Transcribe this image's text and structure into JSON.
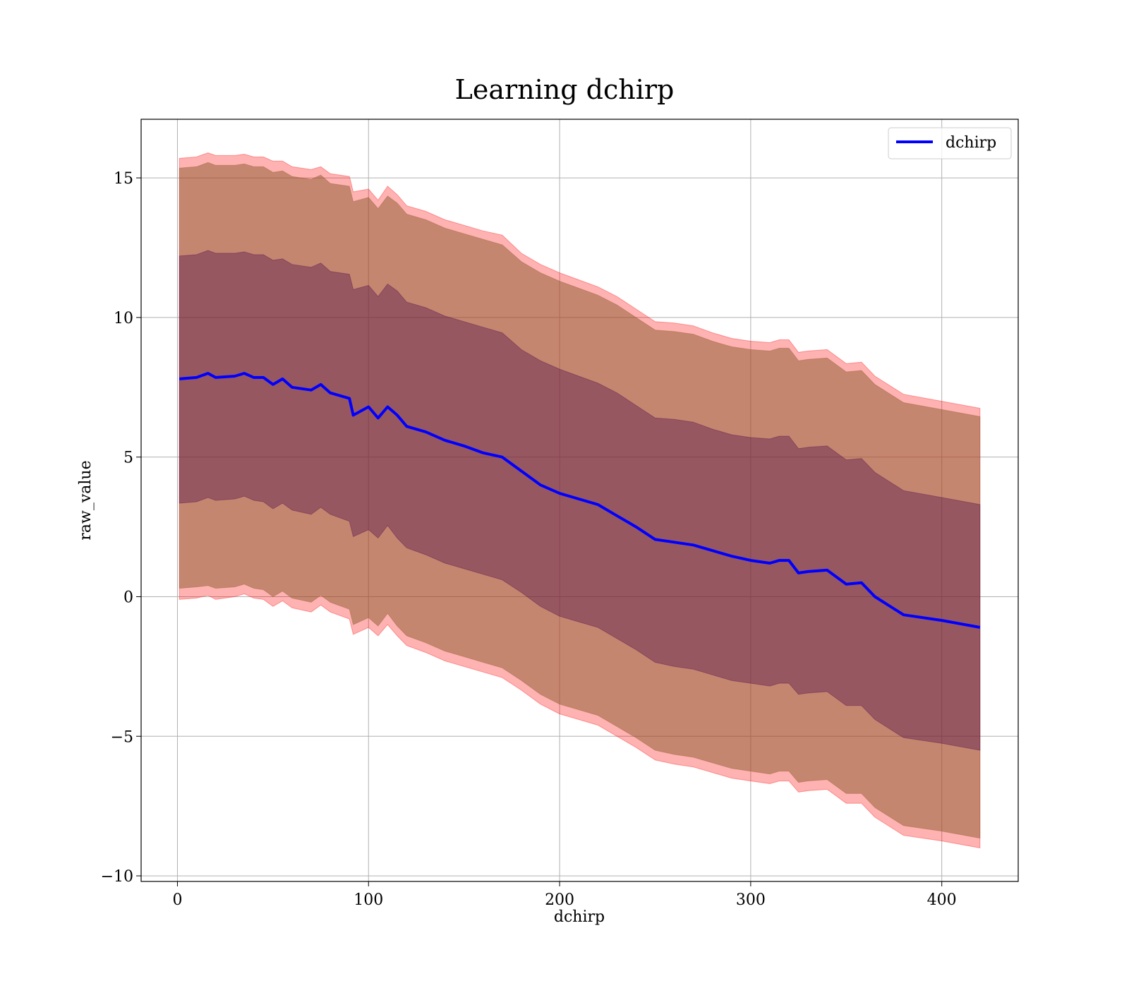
{
  "chart_data": {
    "type": "line",
    "title": "Learning dchirp",
    "xlabel": "dchirp",
    "ylabel": "raw_value",
    "xlim": [
      -19,
      440
    ],
    "ylim": [
      -10.2,
      17.1
    ],
    "xticks": [
      0,
      100,
      200,
      300,
      400
    ],
    "yticks": [
      -10,
      -5,
      0,
      5,
      10,
      15
    ],
    "xtick_labels": [
      "0",
      "100",
      "200",
      "300",
      "400"
    ],
    "ytick_labels": [
      "−10",
      "−5",
      "0",
      "5",
      "10",
      "15"
    ],
    "grid": true,
    "legend": {
      "position": "top-right",
      "entries": [
        "dchirp"
      ]
    },
    "colors": {
      "line": "#0000ff",
      "outer_band": "#ff0000",
      "middle_band": "#8b5a2b",
      "inner_band": "#4b0a4b"
    },
    "x": [
      1,
      10,
      16,
      20,
      30,
      35,
      40,
      45,
      50,
      55,
      60,
      70,
      75,
      80,
      90,
      92,
      100,
      105,
      110,
      115,
      120,
      130,
      140,
      150,
      160,
      170,
      180,
      190,
      200,
      210,
      220,
      230,
      240,
      250,
      260,
      270,
      280,
      290,
      300,
      310,
      315,
      320,
      325,
      330,
      340,
      350,
      358,
      365,
      380,
      400,
      420
    ],
    "series": [
      {
        "name": "dchirp",
        "values": [
          7.8,
          7.85,
          8.0,
          7.85,
          7.9,
          8.0,
          7.85,
          7.85,
          7.6,
          7.8,
          7.5,
          7.4,
          7.6,
          7.3,
          7.1,
          6.5,
          6.8,
          6.4,
          6.8,
          6.5,
          6.1,
          5.9,
          5.6,
          5.4,
          5.15,
          5.0,
          4.5,
          4.0,
          3.7,
          3.5,
          3.3,
          2.9,
          2.5,
          2.05,
          1.95,
          1.85,
          1.65,
          1.45,
          1.3,
          1.2,
          1.3,
          1.3,
          0.85,
          0.9,
          0.95,
          0.45,
          0.5,
          0.0,
          -0.65,
          -0.85,
          -1.1
        ]
      }
    ],
    "bands": [
      {
        "level": "outer",
        "upper": [
          15.7,
          15.75,
          15.9,
          15.8,
          15.8,
          15.85,
          15.75,
          15.75,
          15.6,
          15.6,
          15.4,
          15.3,
          15.4,
          15.15,
          15.05,
          14.5,
          14.6,
          14.2,
          14.7,
          14.4,
          14.0,
          13.8,
          13.5,
          13.3,
          13.1,
          12.95,
          12.3,
          11.9,
          11.6,
          11.35,
          11.1,
          10.75,
          10.3,
          9.85,
          9.8,
          9.7,
          9.45,
          9.25,
          9.15,
          9.1,
          9.2,
          9.2,
          8.75,
          8.8,
          8.85,
          8.35,
          8.4,
          7.9,
          7.25,
          7.0,
          6.75
        ],
        "lower": [
          -0.1,
          -0.05,
          0.05,
          -0.1,
          0.0,
          0.1,
          -0.05,
          -0.1,
          -0.35,
          -0.15,
          -0.4,
          -0.55,
          -0.3,
          -0.55,
          -0.8,
          -1.35,
          -1.1,
          -1.4,
          -1.0,
          -1.4,
          -1.75,
          -2.0,
          -2.3,
          -2.5,
          -2.7,
          -2.9,
          -3.35,
          -3.85,
          -4.2,
          -4.4,
          -4.6,
          -5.0,
          -5.4,
          -5.85,
          -6.0,
          -6.1,
          -6.3,
          -6.5,
          -6.6,
          -6.7,
          -6.6,
          -6.6,
          -7.0,
          -6.95,
          -6.9,
          -7.4,
          -7.4,
          -7.9,
          -8.55,
          -8.75,
          -9.0
        ]
      },
      {
        "level": "middle",
        "upper": [
          15.35,
          15.4,
          15.55,
          15.45,
          15.45,
          15.5,
          15.4,
          15.4,
          15.2,
          15.25,
          15.05,
          14.95,
          15.1,
          14.8,
          14.7,
          14.15,
          14.3,
          13.9,
          14.35,
          14.1,
          13.7,
          13.5,
          13.2,
          13.0,
          12.8,
          12.6,
          12.0,
          11.6,
          11.3,
          11.05,
          10.8,
          10.45,
          10.0,
          9.55,
          9.5,
          9.4,
          9.15,
          8.95,
          8.85,
          8.8,
          8.9,
          8.9,
          8.45,
          8.5,
          8.55,
          8.05,
          8.1,
          7.6,
          6.95,
          6.7,
          6.45
        ],
        "lower": [
          0.3,
          0.35,
          0.4,
          0.3,
          0.35,
          0.45,
          0.3,
          0.25,
          0.0,
          0.2,
          -0.05,
          -0.2,
          0.05,
          -0.2,
          -0.45,
          -1.0,
          -0.75,
          -1.05,
          -0.6,
          -1.05,
          -1.4,
          -1.65,
          -1.95,
          -2.15,
          -2.35,
          -2.55,
          -3.0,
          -3.5,
          -3.85,
          -4.05,
          -4.25,
          -4.65,
          -5.05,
          -5.5,
          -5.65,
          -5.75,
          -5.95,
          -6.15,
          -6.25,
          -6.35,
          -6.25,
          -6.25,
          -6.65,
          -6.6,
          -6.55,
          -7.05,
          -7.05,
          -7.55,
          -8.2,
          -8.4,
          -8.65
        ]
      },
      {
        "level": "inner",
        "upper": [
          12.2,
          12.25,
          12.4,
          12.3,
          12.3,
          12.35,
          12.25,
          12.25,
          12.05,
          12.1,
          11.9,
          11.8,
          11.95,
          11.65,
          11.55,
          11.0,
          11.15,
          10.75,
          11.2,
          10.95,
          10.55,
          10.35,
          10.05,
          9.85,
          9.65,
          9.45,
          8.85,
          8.45,
          8.15,
          7.9,
          7.65,
          7.3,
          6.85,
          6.4,
          6.35,
          6.25,
          6.0,
          5.8,
          5.7,
          5.65,
          5.75,
          5.75,
          5.3,
          5.35,
          5.4,
          4.9,
          4.95,
          4.45,
          3.8,
          3.55,
          3.3
        ],
        "lower": [
          3.35,
          3.4,
          3.55,
          3.45,
          3.5,
          3.6,
          3.45,
          3.4,
          3.15,
          3.35,
          3.1,
          2.95,
          3.2,
          2.95,
          2.7,
          2.15,
          2.4,
          2.1,
          2.55,
          2.1,
          1.75,
          1.5,
          1.2,
          1.0,
          0.8,
          0.6,
          0.15,
          -0.35,
          -0.7,
          -0.9,
          -1.1,
          -1.5,
          -1.9,
          -2.35,
          -2.5,
          -2.6,
          -2.8,
          -3.0,
          -3.1,
          -3.2,
          -3.1,
          -3.1,
          -3.5,
          -3.45,
          -3.4,
          -3.9,
          -3.9,
          -4.4,
          -5.05,
          -5.25,
          -5.5
        ]
      }
    ]
  }
}
